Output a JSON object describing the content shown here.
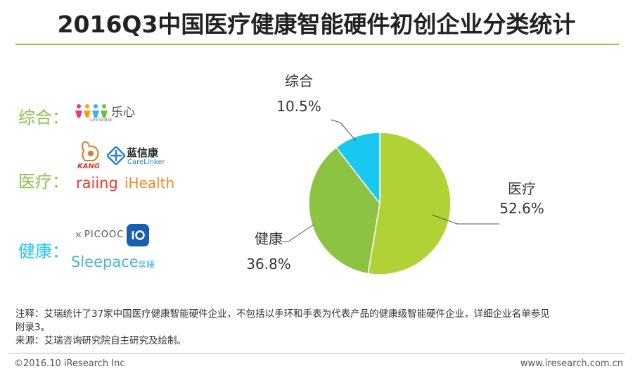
{
  "title": "2016Q3中国医疗健康智能硬件初创企业分类统计",
  "categories_panel": {
    "integrated": {
      "label": "综合：",
      "logos": [
        "乐心",
        "LIFESENSE"
      ]
    },
    "medical": {
      "label": "医疗：",
      "logos": [
        "KANG",
        "蓝信康",
        "CareLinker",
        "raiing",
        "iHealth"
      ]
    },
    "health": {
      "label": "健康：",
      "logos": [
        "PICOOC",
        "Sleepace",
        "享睡"
      ]
    }
  },
  "chart_data": {
    "type": "pie",
    "title": "",
    "slices": [
      {
        "label": "医疗",
        "value": 52.6,
        "value_label": "52.6%",
        "color": "#b0d236"
      },
      {
        "label": "健康",
        "value": 36.8,
        "value_label": "36.8%",
        "color": "#8cc342"
      },
      {
        "label": "综合",
        "value": 10.5,
        "value_label": "10.5%",
        "color": "#18c8f0"
      }
    ]
  },
  "footer": {
    "note_line1": "注释：艾瑞统计了37家中国医疗健康智能硬件企业，不包括以手环和手表为代表产品的健康级智能硬件企业，详细企业名单参见",
    "note_line2": "附录3。",
    "source": "来源：艾瑞咨询研究院自主研究及绘制。",
    "copyright": "©2016.10 iResearch Inc",
    "website": "www.iresearch.com.cn"
  }
}
